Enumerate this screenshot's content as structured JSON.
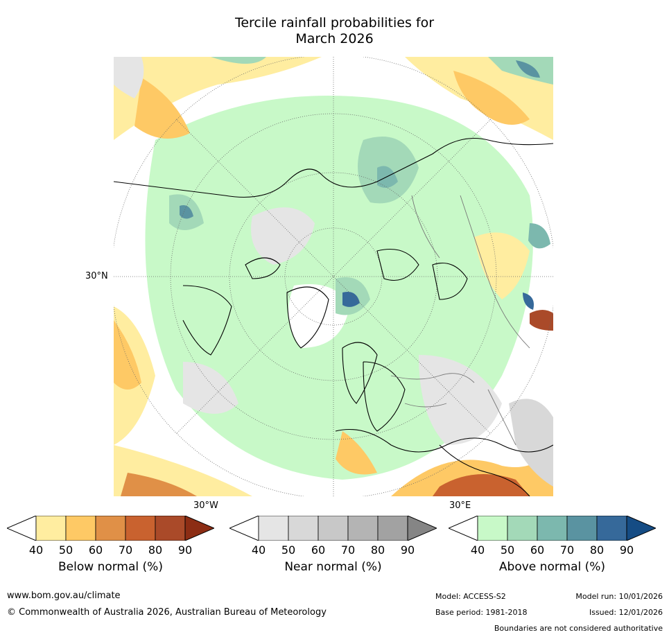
{
  "title_line1": "Tercile rainfall probabilities for",
  "title_line2": "March 2026",
  "labels": {
    "lat30": "30°N",
    "lon30w": "30°W",
    "lon30e": "30°E"
  },
  "colorbars": [
    {
      "id": "below",
      "title": "Below normal (%)",
      "ticks": [
        "40",
        "50",
        "60",
        "70",
        "80",
        "90"
      ],
      "colors": [
        "#ffffff",
        "#ffeda0",
        "#fec965",
        "#e09047",
        "#c9622f",
        "#aa4a29",
        "#8c2d14"
      ]
    },
    {
      "id": "near",
      "title": "Near normal (%)",
      "ticks": [
        "40",
        "50",
        "60",
        "70",
        "80",
        "90"
      ],
      "colors": [
        "#ffffff",
        "#e5e5e5",
        "#d8d8d8",
        "#c8c8c8",
        "#b4b4b4",
        "#a2a2a2",
        "#858585"
      ]
    },
    {
      "id": "above",
      "title": "Above normal (%)",
      "ticks": [
        "40",
        "50",
        "60",
        "70",
        "80",
        "90"
      ],
      "colors": [
        "#ffffff",
        "#c8f9c8",
        "#a3d9b8",
        "#7cb8ae",
        "#5a93a1",
        "#36699a",
        "#154c84"
      ]
    }
  ],
  "footer": {
    "url": "www.bom.gov.au/climate",
    "copyright": "© Commonwealth of Australia 2026, Australian Bureau of Meteorology",
    "model": "Model: ACCESS-S2",
    "base_period": "Base period: 1981-2018",
    "model_run": "Model run: 10/01/2026",
    "issued": "Issued: 12/01/2026",
    "disclaimer": "Boundaries are not considered authoritative"
  }
}
